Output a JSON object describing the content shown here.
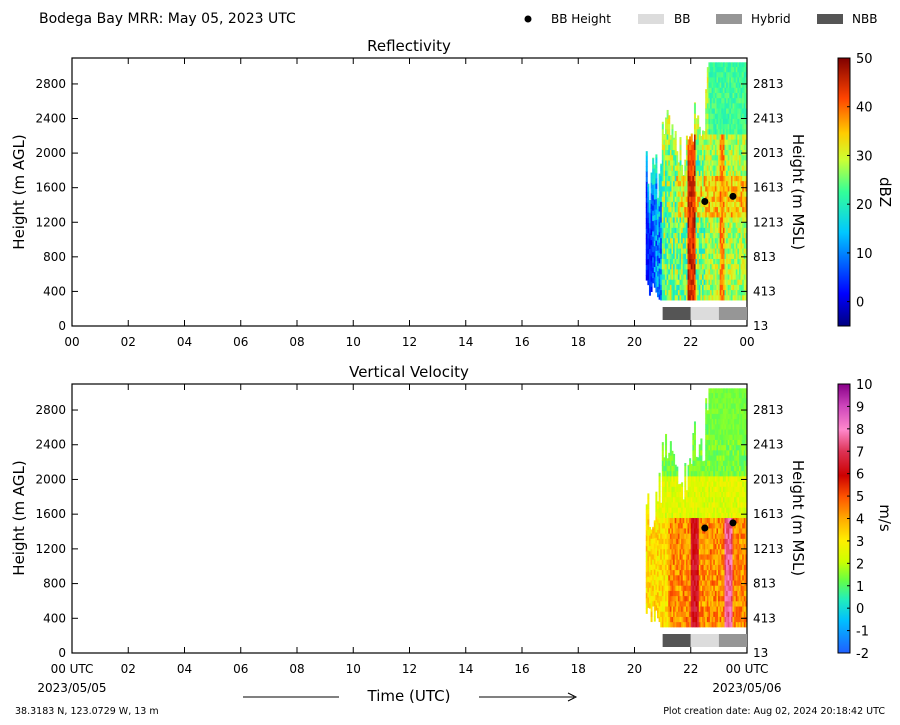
{
  "header": {
    "title": "Bodega Bay MRR:  May 05, 2023 UTC",
    "legend": [
      {
        "label": "BB Height",
        "kind": "dot",
        "color": "#000000"
      },
      {
        "label": "BB",
        "kind": "swatch",
        "color": "#dcdcdc"
      },
      {
        "label": "Hybrid",
        "kind": "swatch",
        "color": "#969696"
      },
      {
        "label": "NBB",
        "kind": "swatch",
        "color": "#555555"
      }
    ]
  },
  "chart_data": [
    {
      "type": "heatmap",
      "title": "Reflectivity",
      "ylabel": "Height (m AGL)",
      "y2label": "Height (m MSL)",
      "xlabel": "",
      "xlim": [
        0,
        24
      ],
      "ylim": [
        0,
        3100
      ],
      "xticks": [
        "00",
        "02",
        "04",
        "06",
        "08",
        "10",
        "12",
        "14",
        "16",
        "18",
        "20",
        "22",
        "00"
      ],
      "yticks": [
        0,
        400,
        800,
        1200,
        1600,
        2000,
        2400,
        2800
      ],
      "y2ticks": [
        13,
        413,
        813,
        1213,
        1613,
        2013,
        2413,
        2813
      ],
      "colorbar": {
        "label": "dBZ",
        "range": [
          -5,
          50
        ],
        "ticks": [
          0,
          10,
          20,
          30,
          40,
          50
        ]
      },
      "data_extent_hours": [
        20.4,
        24
      ],
      "bb_height": [
        {
          "time": 22.5,
          "height": 1440
        },
        {
          "time": 23.5,
          "height": 1500
        }
      ],
      "bb_type_bar": [
        {
          "start": 21.0,
          "end": 22.0,
          "type": "NBB"
        },
        {
          "start": 22.0,
          "end": 23.0,
          "type": "BB"
        },
        {
          "start": 23.0,
          "end": 24.0,
          "type": "Hybrid"
        }
      ]
    },
    {
      "type": "heatmap",
      "title": "Vertical Velocity",
      "ylabel": "Height (m AGL)",
      "y2label": "Height (m MSL)",
      "xlabel": "Time (UTC)",
      "xlim": [
        0,
        24
      ],
      "ylim": [
        0,
        3100
      ],
      "xticks": [
        "00 UTC",
        "02",
        "04",
        "06",
        "08",
        "10",
        "12",
        "14",
        "16",
        "18",
        "20",
        "22",
        "00 UTC"
      ],
      "date_start": "2023/05/05",
      "date_end": "2023/05/06",
      "yticks": [
        0,
        400,
        800,
        1200,
        1600,
        2000,
        2400,
        2800
      ],
      "y2ticks": [
        13,
        413,
        813,
        1213,
        1613,
        2013,
        2413,
        2813
      ],
      "colorbar": {
        "label": "m/s",
        "range": [
          -2,
          10
        ],
        "ticks": [
          -2,
          -1,
          0,
          1,
          2,
          3,
          4,
          5,
          6,
          7,
          8,
          9,
          10
        ]
      },
      "data_extent_hours": [
        20.4,
        24
      ],
      "bb_height": [
        {
          "time": 22.5,
          "height": 1440
        },
        {
          "time": 23.5,
          "height": 1500
        }
      ],
      "bb_type_bar": [
        {
          "start": 21.0,
          "end": 22.0,
          "type": "NBB"
        },
        {
          "start": 22.0,
          "end": 23.0,
          "type": "BB"
        },
        {
          "start": 23.0,
          "end": 24.0,
          "type": "Hybrid"
        }
      ]
    }
  ],
  "footer": {
    "location": "38.3183 N, 123.0729 W, 13 m",
    "creation": "Plot creation date: Aug 02, 2024 20:18:42 UTC"
  }
}
